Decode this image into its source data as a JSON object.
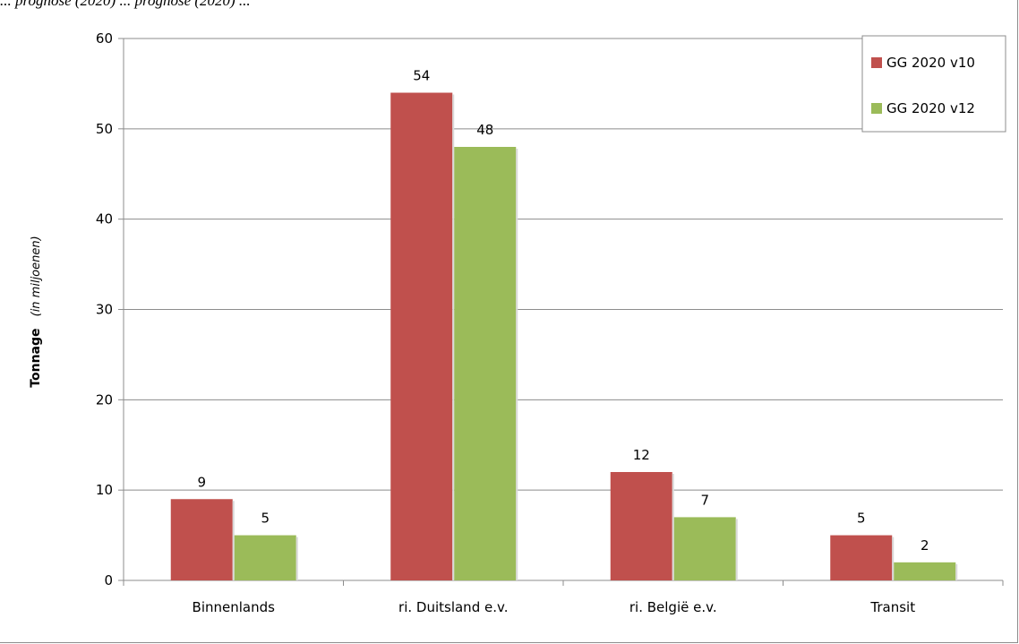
{
  "caption": "... prognose (2020) ... prognose (2020) ...",
  "chart_data": {
    "type": "bar",
    "categories": [
      "Binnenlands",
      "ri. Duitsland e.v.",
      "ri. België e.v.",
      "Transit"
    ],
    "series": [
      {
        "name": "GG 2020 v10",
        "color": "#c0504d",
        "values": [
          9,
          54,
          12,
          5
        ]
      },
      {
        "name": "GG 2020 v12",
        "color": "#9bbb59",
        "values": [
          5,
          48,
          7,
          2
        ]
      }
    ],
    "data_labels": {
      "GG 2020 v10": [
        "9",
        "54",
        "12",
        "5"
      ],
      "GG 2020 v12": [
        "5",
        "48",
        "7",
        "2"
      ]
    },
    "ylim": [
      0,
      60
    ],
    "yticks": [
      "0",
      "10",
      "20",
      "30",
      "40",
      "50",
      "60"
    ],
    "ylabel": "Tonnage",
    "ylabel_sub": "(in miljoenen)",
    "xlabel": "",
    "grid": true,
    "legend_position": "top-right"
  }
}
